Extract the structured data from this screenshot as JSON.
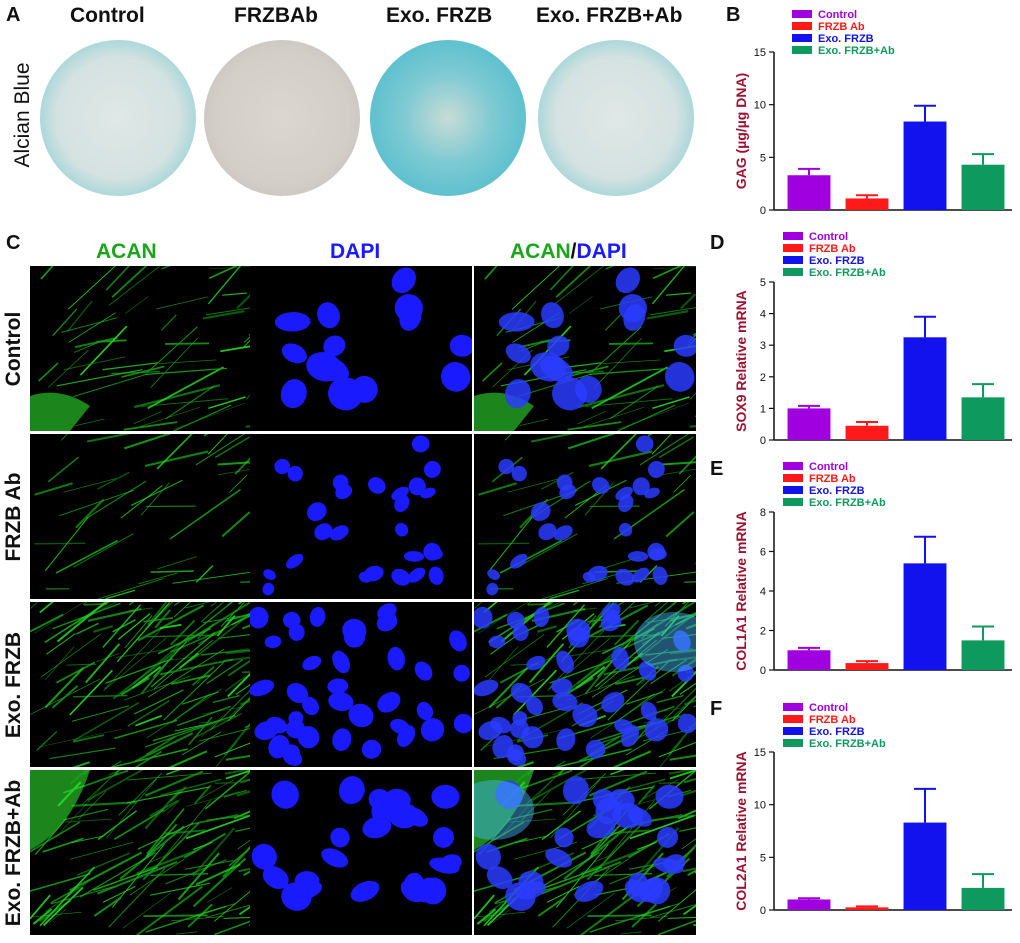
{
  "panel_labels": {
    "a": "A",
    "b": "B",
    "c": "C",
    "d": "D",
    "e": "E",
    "f": "F"
  },
  "alcian": {
    "row_label": "Alcian Blue",
    "columns": [
      "Control",
      "FRZBAb",
      "Exo. FRZB",
      "Exo. FRZB+Ab"
    ]
  },
  "if_panel": {
    "col_acan": "ACAN",
    "col_dapi": "DAPI",
    "merge_a": "ACAN",
    "merge_sep": "/",
    "merge_b": "DAPI",
    "rows": [
      "Control",
      "FRZB Ab",
      "Exo. FRZB",
      "Exo. FRZB+Ab"
    ]
  },
  "colors": {
    "control": "#a000e0",
    "frzb_ab": "#ff1a1a",
    "exo_frzb": "#1212ee",
    "exo_frzb_ab": "#0e9a5e",
    "acan": "#22cc22",
    "dapi": "#1a1aff",
    "axis_label": "#a01030"
  },
  "chart_data": [
    {
      "id": "B",
      "type": "bar",
      "categories": [
        "Control",
        "FRZB Ab",
        "Exo. FRZB",
        "Exo. FRZB+Ab"
      ],
      "values": [
        3.3,
        1.1,
        8.4,
        4.3
      ],
      "errors": [
        0.6,
        0.3,
        1.5,
        1.0
      ],
      "ylabel": "GAG (µg/µg DNA)",
      "ylim": [
        0,
        15
      ],
      "yticks": [
        "0",
        "5",
        "10",
        "15"
      ],
      "legend": [
        "Control",
        "FRZB Ab",
        "Exo. FRZB",
        "Exo. FRZB+Ab"
      ]
    },
    {
      "id": "D",
      "type": "bar",
      "categories": [
        "Control",
        "FRZB Ab",
        "Exo. FRZB",
        "Exo. FRZB+Ab"
      ],
      "values": [
        1.0,
        0.45,
        3.25,
        1.35
      ],
      "errors": [
        0.08,
        0.12,
        0.65,
        0.42
      ],
      "ylabel": "SOX9 Relative mRNA",
      "ylim": [
        0,
        5
      ],
      "yticks": [
        "0",
        "1",
        "2",
        "3",
        "4",
        "5"
      ],
      "legend": [
        "Control",
        "FRZB Ab",
        "Exo. FRZB",
        "Exo. FRZB+Ab"
      ]
    },
    {
      "id": "E",
      "type": "bar",
      "categories": [
        "Control",
        "FRZB Ab",
        "Exo. FRZB",
        "Exo. FRZB+Ab"
      ],
      "values": [
        1.0,
        0.35,
        5.4,
        1.5
      ],
      "errors": [
        0.12,
        0.1,
        1.35,
        0.7
      ],
      "ylabel": "COL1A1 Relative mRNA",
      "ylim": [
        0,
        8
      ],
      "yticks": [
        "0",
        "2",
        "4",
        "6",
        "8"
      ],
      "legend": [
        "Control",
        "FRZB Ab",
        "Exo. FRZB",
        "Exo. FRZB+Ab"
      ]
    },
    {
      "id": "F",
      "type": "bar",
      "categories": [
        "Control",
        "FRZB Ab",
        "Exo. FRZB",
        "Exo. FRZB+Ab"
      ],
      "values": [
        1.0,
        0.25,
        8.3,
        2.1
      ],
      "errors": [
        0.12,
        0.1,
        3.2,
        1.3
      ],
      "ylabel": "COL2A1 Relative mRNA",
      "ylim": [
        0,
        15
      ],
      "yticks": [
        "0",
        "5",
        "10",
        "15"
      ],
      "legend": [
        "Control",
        "FRZB Ab",
        "Exo. FRZB",
        "Exo. FRZB+Ab"
      ]
    }
  ]
}
